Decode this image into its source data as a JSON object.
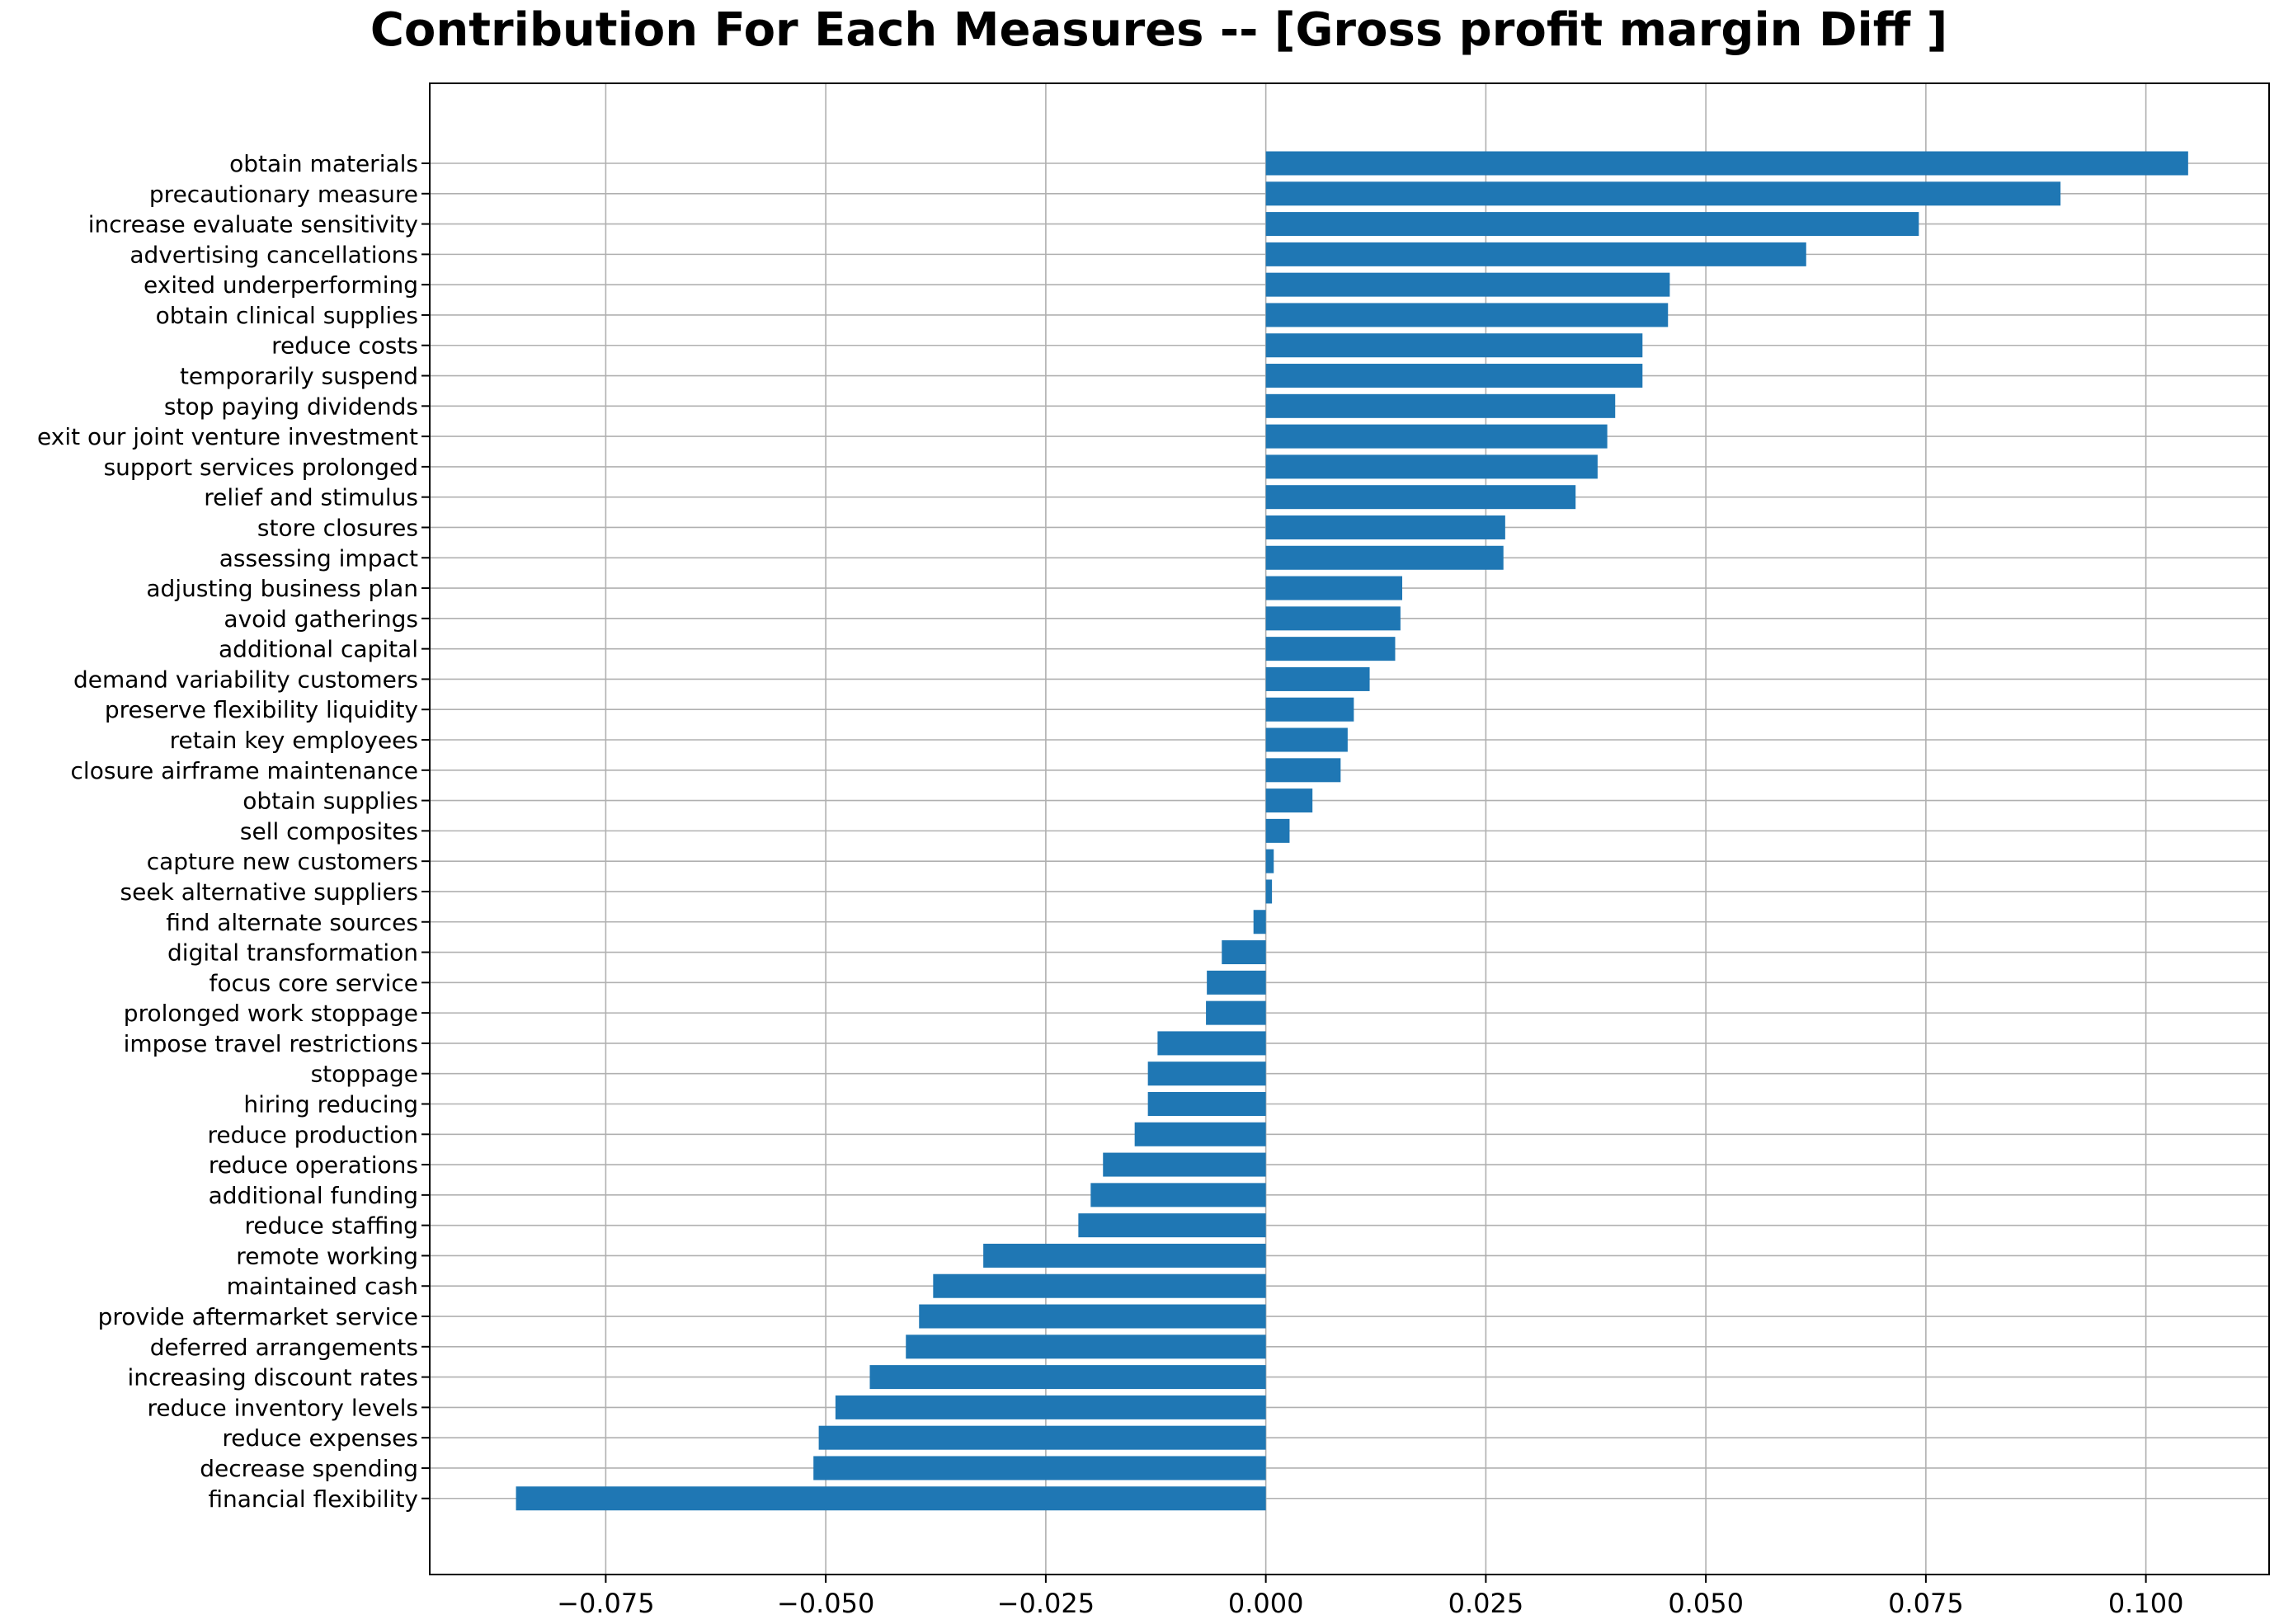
{
  "chart_data": {
    "type": "bar",
    "orientation": "horizontal",
    "title": "Contribution For Each Measures -- [Gross profit margin Diff ]",
    "xlabel": "",
    "ylabel": "",
    "xlim": [
      -0.095,
      0.114
    ],
    "xticks": [
      -0.075,
      -0.05,
      -0.025,
      0.0,
      0.025,
      0.05,
      0.075,
      0.1
    ],
    "xtick_labels": [
      "−0.075",
      "−0.050",
      "−0.025",
      "0.000",
      "0.025",
      "0.050",
      "0.075",
      "0.100"
    ],
    "grid": true,
    "bar_color": "#1f77b4",
    "categories": [
      "obtain materials",
      "precautionary measure",
      "increase evaluate sensitivity",
      "advertising cancellations",
      "exited underperforming",
      "obtain clinical supplies",
      "reduce costs",
      "temporarily suspend",
      "stop paying dividends",
      "exit our joint venture investment",
      "support services prolonged",
      "relief and stimulus",
      "store closures",
      "assessing impact",
      "adjusting business plan",
      "avoid gatherings",
      "additional capital",
      "demand variability customers",
      "preserve flexibility liquidity",
      "retain key employees",
      "closure airframe maintenance",
      "obtain supplies",
      "sell composites",
      "capture new customers",
      "seek alternative suppliers",
      "find alternate sources",
      "digital transformation",
      "focus core service",
      "prolonged work stoppage",
      "impose travel restrictions",
      "stoppage",
      "hiring reducing",
      "reduce production",
      "reduce operations",
      "additional funding",
      "reduce staffing",
      "remote working",
      "maintained cash",
      "provide aftermarket service",
      "deferred arrangements",
      "increasing discount rates",
      "reduce inventory levels",
      "reduce expenses",
      "decrease spending",
      "financial flexibility"
    ],
    "values": [
      0.1048,
      0.0903,
      0.0742,
      0.0614,
      0.0459,
      0.0457,
      0.0428,
      0.0428,
      0.0397,
      0.0388,
      0.0377,
      0.0352,
      0.0272,
      0.027,
      0.0155,
      0.0153,
      0.0147,
      0.0118,
      0.01,
      0.0093,
      0.0085,
      0.0053,
      0.0027,
      0.0009,
      0.0007,
      -0.0014,
      -0.005,
      -0.0067,
      -0.0068,
      -0.0123,
      -0.0134,
      -0.0134,
      -0.0149,
      -0.0185,
      -0.0199,
      -0.0213,
      -0.0321,
      -0.0378,
      -0.0394,
      -0.0409,
      -0.045,
      -0.0489,
      -0.0508,
      -0.0514,
      -0.0852
    ]
  }
}
